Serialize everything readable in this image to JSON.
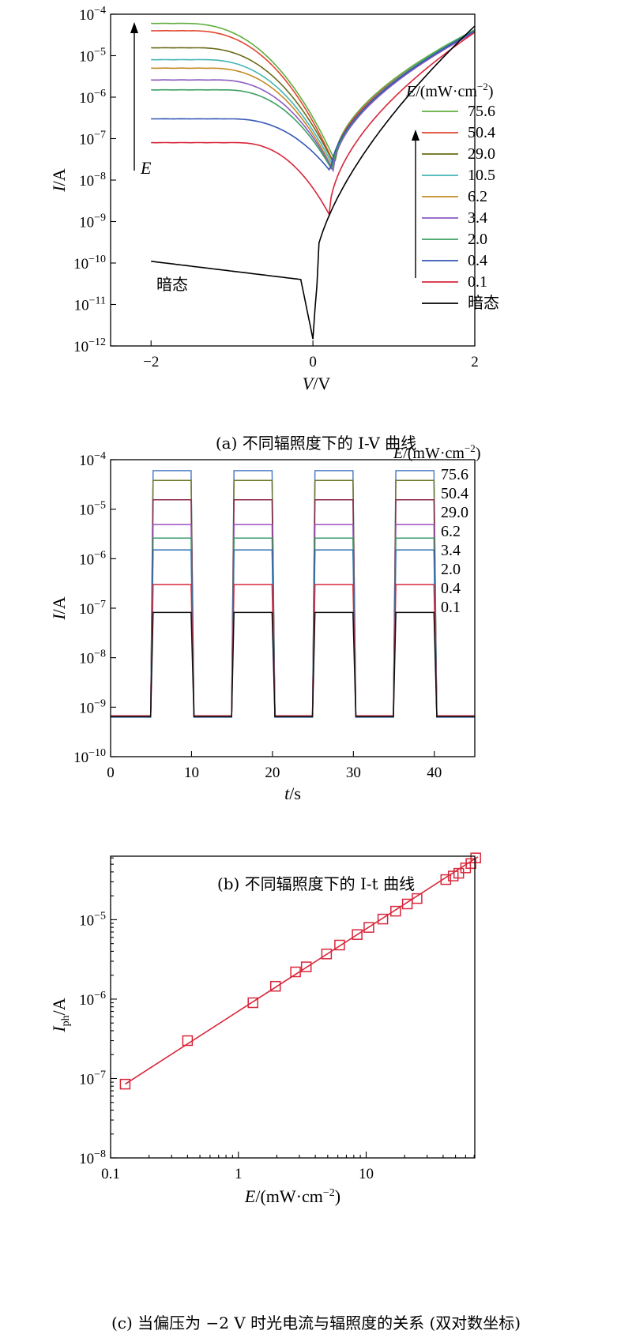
{
  "chart_data": [
    {
      "id": "a",
      "type": "line",
      "caption": "(a) 不同辐照度下的 I-V 曲线",
      "xlabel": "V/V",
      "ylabel": "I/A",
      "xlim": [
        -2.5,
        2
      ],
      "ylim_log10": [
        -12,
        -4
      ],
      "xticks": [
        "−2",
        "0",
        "2"
      ],
      "xtick_values": [
        -2,
        0,
        2
      ],
      "yticks": [
        "10−12",
        "10−11",
        "10−10",
        "10−9",
        "10−8",
        "10−7",
        "10−6",
        "10−5",
        "10−4"
      ],
      "yscale": "log",
      "legend_title": "E/(mW·cm−2)",
      "legend_position": "right",
      "arrow_label": "E",
      "dark_label": "暗态",
      "series": [
        {
          "name": "75.6",
          "color": "#5fae3e",
          "plateau": 6e-05,
          "dip_v": 0.27,
          "dip_i": 3e-08
        },
        {
          "name": "50.4",
          "color": "#e0452e",
          "plateau": 4e-05,
          "dip_v": 0.26,
          "dip_i": 2.5e-08
        },
        {
          "name": "29.0",
          "color": "#6b6b1a",
          "plateau": 1.55e-05,
          "dip_v": 0.27,
          "dip_i": 2.2e-08
        },
        {
          "name": "10.5",
          "color": "#45b5b5",
          "plateau": 8e-06,
          "dip_v": 0.26,
          "dip_i": 2e-08
        },
        {
          "name": "6.2",
          "color": "#c38b24",
          "plateau": 5e-06,
          "dip_v": 0.25,
          "dip_i": 1.8e-08
        },
        {
          "name": "3.4",
          "color": "#8a5bbf",
          "plateau": 2.6e-06,
          "dip_v": 0.25,
          "dip_i": 1.7e-08
        },
        {
          "name": "2.0",
          "color": "#3aa060",
          "plateau": 1.5e-06,
          "dip_v": 0.24,
          "dip_i": 1.7e-08
        },
        {
          "name": "0.4",
          "color": "#3457b5",
          "plateau": 3e-07,
          "dip_v": 0.22,
          "dip_i": 1.6e-08
        },
        {
          "name": "0.1",
          "color": "#d8263a",
          "plateau": 8e-08,
          "dip_v": 0.2,
          "dip_i": 1.5e-09
        },
        {
          "name": "暗态",
          "color": "#000000",
          "plateau": 1.1e-10,
          "dip_v": 0.0,
          "dip_i": 2e-12
        }
      ]
    },
    {
      "id": "b",
      "type": "line",
      "caption": "(b) 不同辐照度下的 I-t 曲线",
      "xlabel": "t/s",
      "ylabel": "I/A",
      "xlim": [
        0,
        45
      ],
      "ylim_log10": [
        -10,
        -4
      ],
      "xticks": [
        "0",
        "10",
        "20",
        "30",
        "40"
      ],
      "xtick_values": [
        0,
        10,
        20,
        30,
        40
      ],
      "yticks": [
        "10−10",
        "10−9",
        "10−8",
        "10−7",
        "10−6",
        "10−5",
        "10−4"
      ],
      "yscale": "log",
      "legend_title": "E/(mW·cm−2)",
      "legend_position": "top-right",
      "dark_level": 6.5e-10,
      "on_intervals": [
        [
          5,
          10
        ],
        [
          15,
          20
        ],
        [
          25,
          30
        ],
        [
          35,
          40
        ]
      ],
      "series": [
        {
          "name": "75.6",
          "color": "#4f7fc8",
          "on": 6e-05
        },
        {
          "name": "50.4",
          "color": "#6b7a2a",
          "on": 3.8e-05
        },
        {
          "name": "29.0",
          "color": "#8b2a4a",
          "on": 1.55e-05
        },
        {
          "name": "6.2",
          "color": "#9a4fbf",
          "on": 4.9e-06
        },
        {
          "name": "3.4",
          "color": "#3a9a6a",
          "on": 2.6e-06
        },
        {
          "name": "2.0",
          "color": "#2a6fb0",
          "on": 1.5e-06
        },
        {
          "name": "0.4",
          "color": "#d8263a",
          "on": 3e-07
        },
        {
          "name": "0.1",
          "color": "#111111",
          "on": 8.2e-08
        }
      ]
    },
    {
      "id": "c",
      "type": "scatter",
      "caption": "(c) 当偏压为 −2 V 时光电流与辐照度的关系 (双对数坐标)",
      "xlabel": "E/(mW·cm−2)",
      "ylabel": "Iph/A",
      "xlim_log10": [
        -1,
        1.85
      ],
      "ylim_log10": [
        -8,
        -4.2
      ],
      "xticks": [
        "0.1",
        "1",
        "10"
      ],
      "yticks": [
        "10−8",
        "10−7",
        "10−6",
        "10−5"
      ],
      "xscale": "log",
      "yscale": "log",
      "marker": "open-square",
      "color": "#d8263a",
      "x": [
        0.13,
        0.4,
        1.3,
        1.95,
        2.8,
        3.4,
        4.9,
        6.2,
        8.5,
        10.5,
        13.5,
        17,
        21,
        25,
        42,
        48,
        53,
        60,
        66,
        72
      ],
      "y": [
        8.5e-08,
        3e-07,
        9e-07,
        1.45e-06,
        2.2e-06,
        2.55e-06,
        3.7e-06,
        4.8e-06,
        6.5e-06,
        8e-06,
        1.02e-05,
        1.28e-05,
        1.58e-05,
        1.85e-05,
        3.2e-05,
        3.55e-05,
        3.85e-05,
        4.5e-05,
        5.1e-05,
        6e-05
      ],
      "fit_line": {
        "x": [
          0.13,
          75
        ],
        "y": [
          8.5e-08,
          6.2e-05
        ]
      }
    }
  ]
}
